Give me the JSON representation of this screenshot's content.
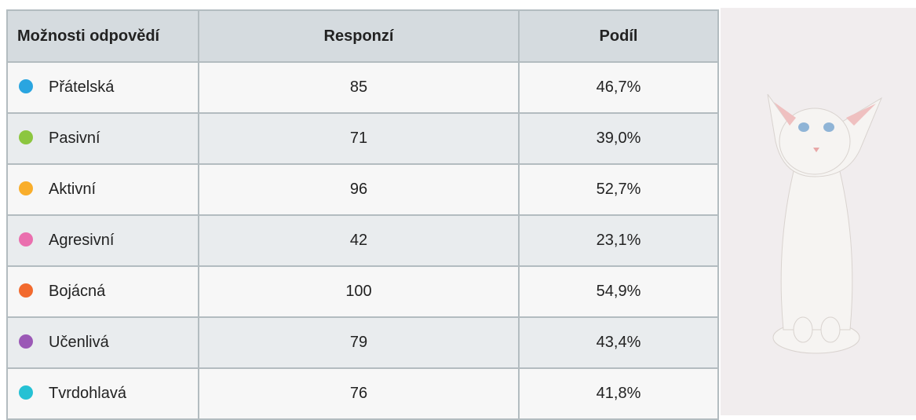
{
  "table": {
    "header": [
      "Možnosti odpovědí",
      "Responzí",
      "Podíl"
    ],
    "rows": [
      {
        "label": "Přátelská",
        "color": "#2aa5e0",
        "responses": 85,
        "share": "46,7%"
      },
      {
        "label": "Pasivní",
        "color": "#8cc63f",
        "responses": 71,
        "share": "39,0%"
      },
      {
        "label": "Aktivní",
        "color": "#f9ae2b",
        "responses": 96,
        "share": "52,7%"
      },
      {
        "label": "Agresivní",
        "color": "#ea6fae",
        "responses": 42,
        "share": "23,1%"
      },
      {
        "label": "Bojácná",
        "color": "#f26a2e",
        "responses": 100,
        "share": "54,9%"
      },
      {
        "label": "Učenlivá",
        "color": "#9b59b6",
        "responses": 79,
        "share": "43,4%"
      },
      {
        "label": "Tvrdohlavá",
        "color": "#25c1d4",
        "responses": 76,
        "share": "41,8%"
      }
    ]
  }
}
